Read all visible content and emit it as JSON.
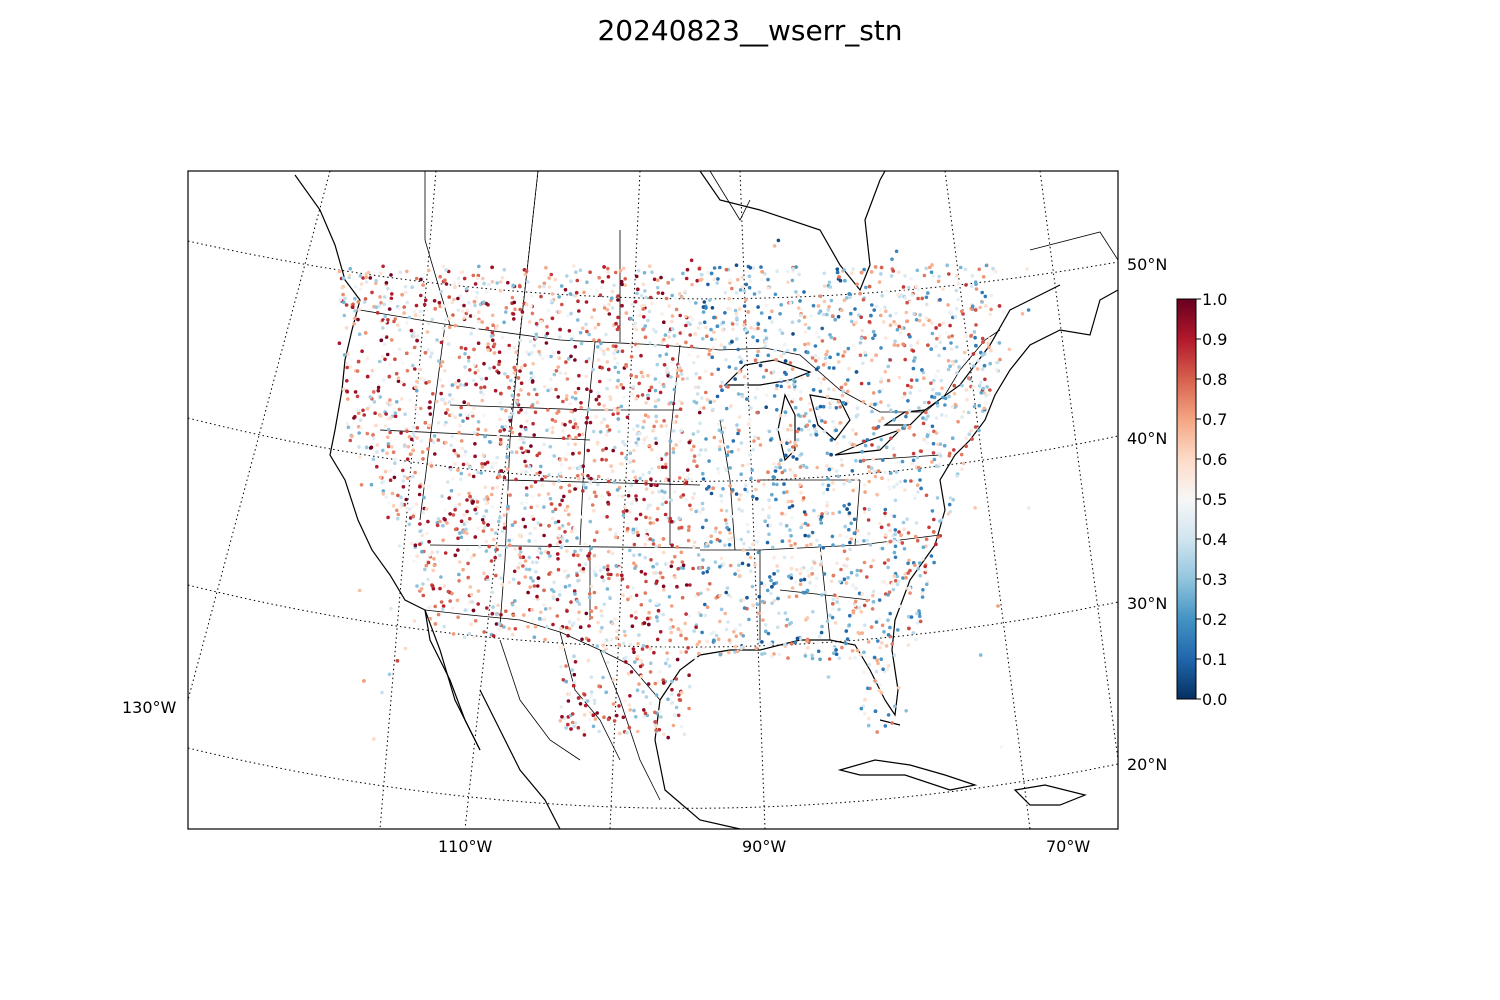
{
  "title": "20240823__wserr_stn",
  "map": {
    "projection": "lambert-conformal",
    "parallel_labels": [
      "50°N",
      "40°N",
      "30°N",
      "20°N"
    ],
    "meridian_labels": [
      "130°W",
      "110°W",
      "90°W",
      "70°W"
    ],
    "gridline_style": "dotted",
    "graticule": true
  },
  "colorbar": {
    "colormap": "RdBu_r",
    "range": [
      0.0,
      1.0
    ],
    "tick_labels": [
      "1.0",
      "0.9",
      "0.8",
      "0.7",
      "0.6",
      "0.5",
      "0.4",
      "0.3",
      "0.2",
      "0.1",
      "0.0"
    ],
    "colors": {
      "low": "#053061",
      "mid": "#f7f7f7",
      "high": "#67001f"
    }
  },
  "colors": {
    "coast": "#000000",
    "background": "#ffffff"
  }
}
